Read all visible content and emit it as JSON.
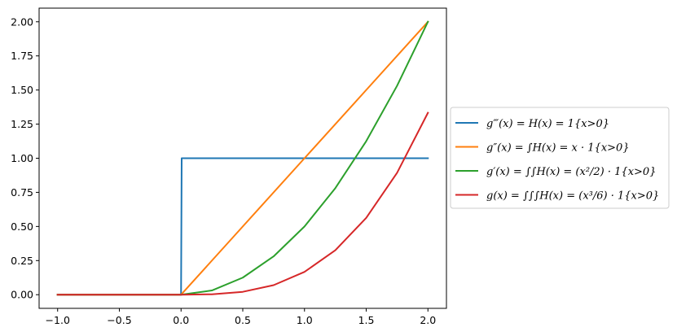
{
  "chart_data": {
    "type": "line",
    "title": "",
    "xlabel": "",
    "ylabel": "",
    "xlim": [
      -1.15,
      2.15
    ],
    "ylim": [
      -0.1,
      2.1
    ],
    "x_ticks": [
      -1.0,
      -0.5,
      0.0,
      0.5,
      1.0,
      1.5,
      2.0
    ],
    "x_tick_labels": [
      "−1.0",
      "−0.5",
      "0.0",
      "0.5",
      "1.0",
      "1.5",
      "2.0"
    ],
    "y_ticks": [
      0.0,
      0.25,
      0.5,
      0.75,
      1.0,
      1.25,
      1.5,
      1.75,
      2.0
    ],
    "y_tick_labels": [
      "0.00",
      "0.25",
      "0.50",
      "0.75",
      "1.00",
      "1.25",
      "1.50",
      "1.75",
      "2.00"
    ],
    "grid": false,
    "legend_position": "center-left outside right",
    "series": [
      {
        "name": "g‴(x) = H(x) = 1{x>0}",
        "color": "#1f77b4",
        "x": [
          -1.0,
          -0.5,
          0.0,
          0.005,
          0.5,
          1.0,
          1.5,
          2.0
        ],
        "y": [
          0.0,
          0.0,
          0.0,
          1.0,
          1.0,
          1.0,
          1.0,
          1.0
        ]
      },
      {
        "name": "g″(x) = ∫H(x) = x · 1{x>0}",
        "color": "#ff7f0e",
        "x": [
          -1.0,
          -0.5,
          0.0,
          0.5,
          1.0,
          1.5,
          2.0
        ],
        "y": [
          0.0,
          0.0,
          0.0,
          0.5,
          1.0,
          1.5,
          2.0
        ]
      },
      {
        "name": "g′(x) = ∫∫H(x) = (x²/2) · 1{x>0}",
        "color": "#2ca02c",
        "x": [
          -1.0,
          -0.5,
          0.0,
          0.25,
          0.5,
          0.75,
          1.0,
          1.25,
          1.5,
          1.75,
          2.0
        ],
        "y": [
          0.0,
          0.0,
          0.0,
          0.031,
          0.125,
          0.281,
          0.5,
          0.781,
          1.125,
          1.531,
          2.0
        ]
      },
      {
        "name": "g(x) = ∫∫∫H(x) = (x³/6) · 1{x>0}",
        "color": "#d62728",
        "x": [
          -1.0,
          -0.5,
          0.0,
          0.25,
          0.5,
          0.75,
          1.0,
          1.25,
          1.5,
          1.75,
          2.0
        ],
        "y": [
          0.0,
          0.0,
          0.0,
          0.003,
          0.021,
          0.07,
          0.167,
          0.326,
          0.563,
          0.893,
          1.333
        ]
      }
    ]
  }
}
